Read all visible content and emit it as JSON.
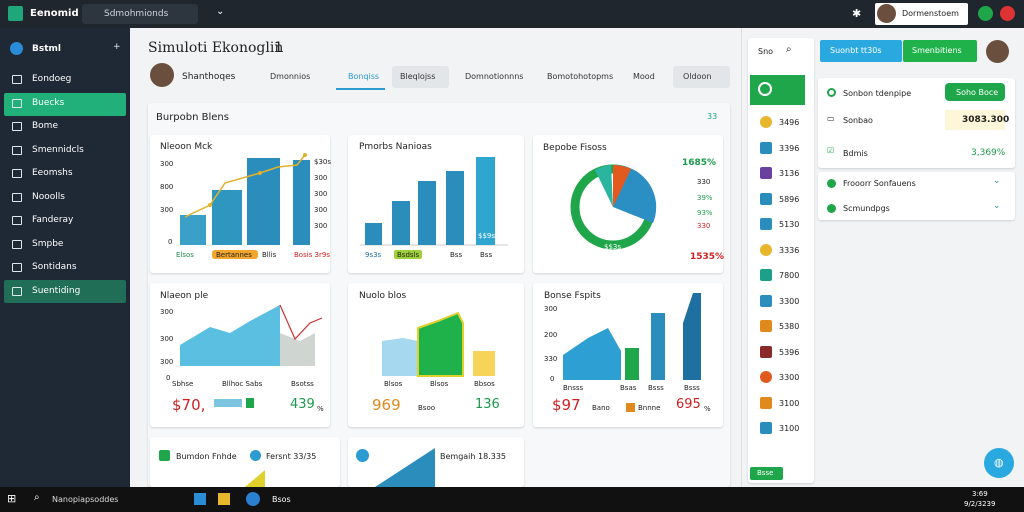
{
  "topbar": {
    "brand": "Eenomid",
    "search": "Sdmohmionds",
    "user": "Dormenstoem"
  },
  "sidebar": {
    "header": "Bstml",
    "items": [
      "Eondoeg",
      "Buecks",
      "Bome",
      "Smennidcls",
      "Eeomshs",
      "Nooolls",
      "Fanderay",
      "Smpbe",
      "Sontidans",
      "Suentiding"
    ]
  },
  "page": {
    "title": "Simuloti Ekonoglin",
    "title_num": "1",
    "user": "Shanthoqes",
    "tabs": [
      "Dmonnios",
      "Bonqiss",
      "Bleqlojss",
      "Domnotionnns",
      "Bomotohotopms",
      "Mood",
      "Oldoon"
    ]
  },
  "panel": {
    "title": "Burpobn Blens",
    "badge": "33"
  },
  "cards": [
    {
      "title": "Nleoon Mck",
      "axis": [
        "300",
        "800",
        "300",
        "0"
      ],
      "footer": [
        "Elsos",
        "Bertannes",
        "Bllis",
        "Bosis 3r9s"
      ],
      "right": [
        "$30s",
        "300",
        "300",
        "300",
        "300"
      ]
    },
    {
      "title": "Pmorbs Nanioas",
      "footer": [
        "9s3s",
        "Bsdsls",
        "Bss",
        "Bss"
      ],
      "inner": "$$9s"
    },
    {
      "title": "Bepobe Fisoss",
      "donut": "$$3s",
      "right": [
        "1685%",
        "330",
        "39%",
        "93%",
        "330",
        "1535%"
      ]
    },
    {
      "title": "Nlaeon ple",
      "axis": [
        "300",
        "300",
        "300",
        "0"
      ],
      "footer": [
        "Sbhse",
        "Bllhoc Sabs",
        "Bsotss"
      ],
      "big": "$70,",
      "stat": "439",
      "unit": "%"
    },
    {
      "title": "Nuolo blos",
      "footer": [
        "Blsos",
        "Blsos",
        "Bbsos"
      ],
      "big": "969",
      "small": "Bsoo",
      "stat": "136"
    },
    {
      "title": "Bonse Fspits",
      "axis": [
        "300",
        "200",
        "330",
        "0"
      ],
      "footer": [
        "Bnsss",
        "Bsas",
        "Bsss",
        "Bsss"
      ],
      "big": "$97",
      "small": "Bano",
      "small2": "Bnnne",
      "stat": "695",
      "unit": "%"
    },
    {
      "title": "Bumdon Fnhde",
      "side": "Fersnt 33/35"
    },
    {
      "title": "Bemgaih 18.335"
    }
  ],
  "list": {
    "search": "Sno",
    "values": [
      "3496",
      "3396",
      "3136",
      "5896",
      "5130",
      "3336",
      "7800",
      "3300",
      "5380",
      "5396",
      "3300",
      "3100",
      "3100"
    ],
    "button": "Bsse"
  },
  "right_panel": {
    "btn_blue": "Suonbt tt30s",
    "btn_green": "Smenbitiens",
    "row1": "Sonbon tdenpipe",
    "row1_btn": "Soho Boce",
    "row2": "Sonbao",
    "row2_value": "3083.300",
    "row3": "Bdmis",
    "row3_value": "3,369%",
    "acc1": "Frooorr Sonfauens",
    "acc2": "Scmundpgs"
  },
  "taskbar": {
    "search": "Nanopiapsoddes",
    "app": "Bsos",
    "time": "3:69",
    "date": "9/2/3239"
  }
}
